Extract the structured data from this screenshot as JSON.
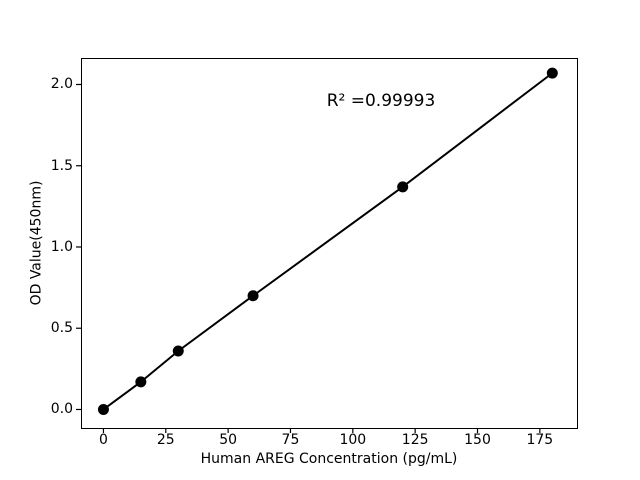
{
  "figure": {
    "background": "#ffffff",
    "text_color": "#000000"
  },
  "chart_data": {
    "type": "scatter",
    "title": "",
    "xlabel": "Human AREG Concentration (pg/mL)",
    "ylabel": "OD Value(450nm)",
    "annotation": {
      "text": "R² =0.99993",
      "x": 111,
      "y": 1.9
    },
    "x": [
      0,
      15,
      30,
      60,
      120,
      180
    ],
    "y": [
      0.0,
      0.17,
      0.36,
      0.7,
      1.37,
      2.07
    ],
    "r_squared": 0.99993,
    "xlim": [
      -9.0,
      189.9
    ],
    "ylim": [
      -0.114,
      2.163
    ],
    "xticks": {
      "values": [
        0,
        25,
        50,
        75,
        100,
        125,
        150,
        175
      ],
      "labels": [
        "0",
        "25",
        "50",
        "75",
        "100",
        "125",
        "150",
        "175"
      ]
    },
    "yticks": {
      "values": [
        0.0,
        0.5,
        1.0,
        1.5,
        2.0
      ],
      "labels": [
        "0.0",
        "0.5",
        "1.0",
        "1.5",
        "2.0"
      ]
    },
    "line_color": "#000000",
    "marker_color": "#000000",
    "marker_radius": 5.5,
    "line_width": 2,
    "grid": false
  }
}
